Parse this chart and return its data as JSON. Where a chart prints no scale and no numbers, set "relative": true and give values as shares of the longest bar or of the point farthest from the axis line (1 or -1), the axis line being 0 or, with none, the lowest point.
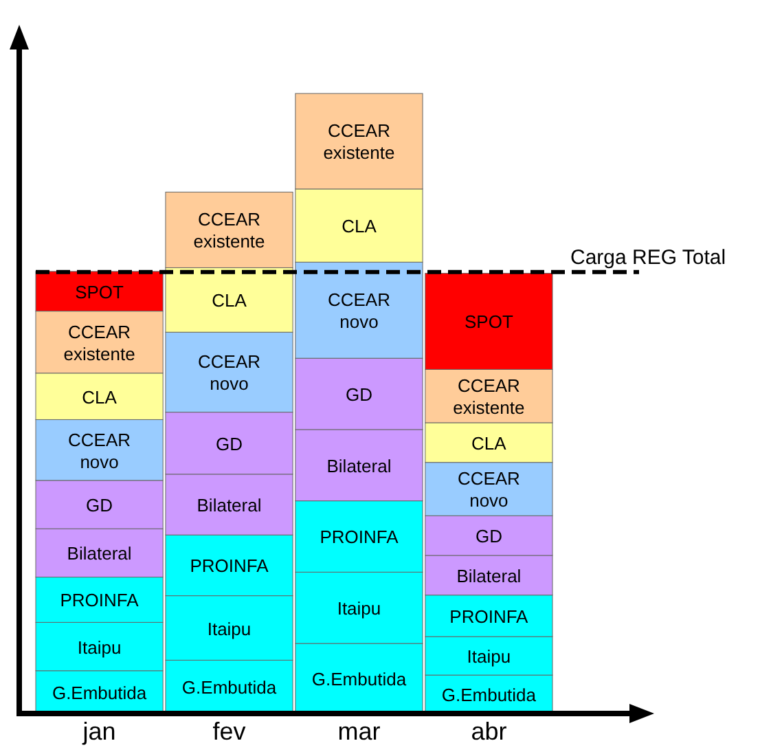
{
  "chart_data": {
    "type": "bar",
    "stacked": true,
    "relative": true,
    "categories": [
      "jan",
      "fev",
      "mar",
      "abr"
    ],
    "series": [
      {
        "name": "G.Embutida",
        "color": "#00ffff",
        "values": [
          0.069,
          0.086,
          0.113,
          0.062
        ]
      },
      {
        "name": "Itaipu",
        "color": "#00ffff",
        "values": [
          0.078,
          0.104,
          0.115,
          0.062
        ]
      },
      {
        "name": "PROINFA",
        "color": "#00ffff",
        "values": [
          0.073,
          0.098,
          0.115,
          0.067
        ]
      },
      {
        "name": "Bilateral",
        "color": "#cc99ff",
        "values": [
          0.078,
          0.098,
          0.115,
          0.064
        ]
      },
      {
        "name": "GD",
        "color": "#cc99ff",
        "values": [
          0.078,
          0.1,
          0.115,
          0.064
        ]
      },
      {
        "name": "CCEAR novo",
        "color": "#99ccff",
        "values": [
          0.098,
          0.129,
          0.155,
          0.086
        ]
      },
      {
        "name": "CLA",
        "color": "#ffff99",
        "values": [
          0.075,
          0.104,
          0.118,
          0.064
        ]
      },
      {
        "name": "CCEAR existente",
        "color": "#ffcc99",
        "values": [
          0.1,
          0.122,
          0.154,
          0.086
        ]
      },
      {
        "name": "SPOT",
        "color": "#ff0000",
        "values": [
          0.064,
          null,
          null,
          0.155
        ]
      }
    ],
    "ref_lines": [
      {
        "axis": "y",
        "value": 0.712,
        "label": "Carga REG Total",
        "line_style": "dashed"
      }
    ]
  }
}
